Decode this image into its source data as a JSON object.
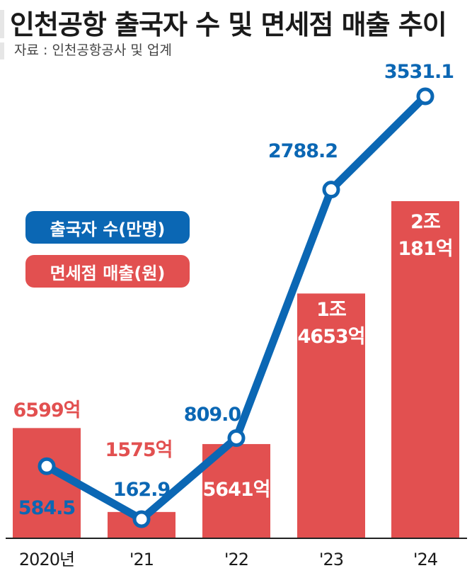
{
  "title": "인천공항 출국자 수 및 면세점 매출 추이",
  "source": "자료 : 인천공항공사 및 업계",
  "legend": {
    "line_label": "출국자 수(만명)",
    "bar_label": "면세점 매출(원)"
  },
  "colors": {
    "line": "#0b67b4",
    "bar": "#e25050",
    "bar_label": "#e25050",
    "axis": "#222222"
  },
  "chart_data": {
    "type": "bar+line",
    "categories": [
      "2020년",
      "'21",
      "'22",
      "'23",
      "'24"
    ],
    "series": [
      {
        "name": "면세점 매출(원)",
        "type": "bar",
        "unit": "억원",
        "values": [
          6599,
          1575,
          5641,
          14653,
          20181
        ],
        "labels": [
          "6599억",
          "1575억",
          "5641억",
          "1조\n4653억",
          "2조\n181억"
        ]
      },
      {
        "name": "출국자 수(만명)",
        "type": "line",
        "unit": "만명",
        "values": [
          584.5,
          162.9,
          809.0,
          2788.2,
          3531.1
        ],
        "labels": [
          "584.5",
          "162.9",
          "809.0",
          "2788.2",
          "3531.1"
        ]
      }
    ]
  }
}
